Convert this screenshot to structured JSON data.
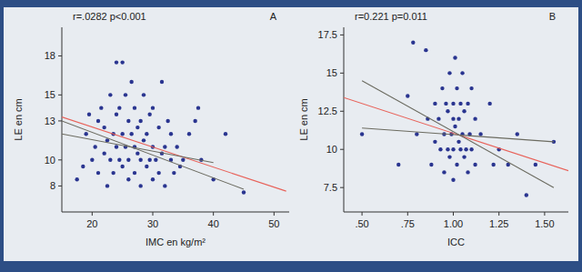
{
  "chart_data": [
    {
      "type": "scatter",
      "title": "A",
      "annotation": "r=.0282 p<0.001",
      "x_label": "IMC en kg/m²",
      "y_label": "LE en cm",
      "xlim": [
        15,
        52.5
      ],
      "ylim": [
        6,
        20.2
      ],
      "xticks": [
        20,
        30,
        40,
        50
      ],
      "yticks": [
        8,
        10,
        13,
        15,
        18
      ],
      "grid": false,
      "series": [
        {
          "type": "scatter",
          "marker": "circle",
          "color": "#2a3590",
          "x": [
            17.5,
            18.5,
            19,
            19.5,
            20,
            20.5,
            21,
            21,
            21.5,
            22,
            22,
            22.5,
            22.5,
            23,
            23,
            23.5,
            23.5,
            24,
            24,
            24,
            24.5,
            24.5,
            25,
            25,
            25,
            25.5,
            25.5,
            26,
            26,
            26,
            26.5,
            26.5,
            27,
            27,
            27,
            27.5,
            27.5,
            28,
            28,
            28,
            28.5,
            28.5,
            29,
            29,
            29.5,
            29.5,
            30,
            30,
            30,
            30.5,
            31,
            31,
            31.5,
            31.5,
            32,
            32,
            32.5,
            33,
            33,
            33.5,
            34,
            34.5,
            35,
            36,
            37,
            37.5,
            38,
            40,
            42,
            45
          ],
          "values": [
            8.5,
            9.5,
            12,
            13.5,
            10,
            11,
            9,
            13,
            14,
            10.5,
            12.5,
            8,
            11.5,
            15,
            10,
            12,
            9,
            17.5,
            13.5,
            11,
            10,
            14,
            17.5,
            12,
            9.5,
            11,
            15,
            10,
            13,
            8.5,
            12,
            16,
            11,
            9,
            14,
            10.5,
            12.5,
            13,
            10,
            8,
            11.5,
            15,
            12,
            9.5,
            10,
            13.5,
            11,
            8.5,
            14,
            10,
            12.5,
            9,
            16,
            10.5,
            11,
            8,
            13,
            10,
            12,
            9,
            11,
            9.5,
            10,
            12,
            13,
            14,
            10,
            8.5,
            12,
            7.5
          ]
        },
        {
          "type": "line",
          "line_style": "solid",
          "color": "#e8625a",
          "x": [
            15,
            52
          ],
          "values": [
            13.3,
            7.6
          ]
        },
        {
          "type": "line",
          "line_style": "solid",
          "color": "#6b6b60",
          "x": [
            15,
            40
          ],
          "values": [
            12.0,
            9.8
          ]
        },
        {
          "type": "line",
          "line_style": "solid",
          "color": "#6b6b60",
          "x": [
            15,
            45
          ],
          "values": [
            13.0,
            7.75
          ]
        }
      ]
    },
    {
      "type": "scatter",
      "title": "B",
      "annotation": "r=0.221 p=0.011",
      "x_label": "ICC",
      "y_label": "LE en cm",
      "xlim": [
        0.4,
        1.63
      ],
      "ylim": [
        5.9,
        18
      ],
      "xticks": [
        {
          "value": 0.5,
          "label": ".50"
        },
        {
          "value": 0.75,
          "label": ".75"
        },
        {
          "value": 1.0,
          "label": "1.00"
        },
        {
          "value": 1.25,
          "label": "1.25"
        },
        {
          "value": 1.5,
          "label": "1.50"
        }
      ],
      "yticks": [
        {
          "value": 7.5,
          "label": "7.5"
        },
        10,
        {
          "value": 12.5,
          "label": "12.5"
        },
        15,
        {
          "value": 17.5,
          "label": "17.5"
        }
      ],
      "grid": false,
      "series": [
        {
          "type": "scatter",
          "marker": "circle",
          "color": "#2a3590",
          "x": [
            0.5,
            0.7,
            0.75,
            0.78,
            0.8,
            0.85,
            0.86,
            0.88,
            0.9,
            0.9,
            0.92,
            0.93,
            0.94,
            0.95,
            0.95,
            0.96,
            0.97,
            0.97,
            0.98,
            0.98,
            0.99,
            1.0,
            1.0,
            1.0,
            1.0,
            1.01,
            1.01,
            1.02,
            1.02,
            1.03,
            1.03,
            1.04,
            1.04,
            1.05,
            1.05,
            1.06,
            1.06,
            1.07,
            1.08,
            1.08,
            1.09,
            1.1,
            1.1,
            1.12,
            1.12,
            1.15,
            1.2,
            1.22,
            1.25,
            1.3,
            1.35,
            1.4,
            1.45,
            1.55
          ],
          "values": [
            11,
            9,
            13.5,
            17,
            11,
            16.5,
            12,
            9,
            13,
            10.5,
            12,
            10,
            14,
            11,
            8.5,
            13,
            10,
            12.5,
            9.5,
            15,
            11,
            13,
            10,
            12,
            8,
            16,
            11.5,
            9,
            14,
            10.5,
            12,
            13,
            10,
            11,
            15,
            9.5,
            12.5,
            10,
            13,
            8.5,
            11,
            14,
            10,
            12,
            9,
            11,
            13,
            9,
            10,
            9,
            11,
            7,
            9,
            10.5
          ]
        },
        {
          "type": "line",
          "line_style": "solid",
          "color": "#e8625a",
          "x": [
            0.4,
            1.63
          ],
          "values": [
            13.4,
            8.6
          ]
        },
        {
          "type": "line",
          "line_style": "solid",
          "color": "#6b6b60",
          "x": [
            0.5,
            1.55
          ],
          "values": [
            11.4,
            10.5
          ]
        },
        {
          "type": "line",
          "line_style": "solid",
          "color": "#6b6b60",
          "x": [
            0.5,
            1.55
          ],
          "values": [
            14.5,
            7.5
          ]
        }
      ]
    }
  ]
}
